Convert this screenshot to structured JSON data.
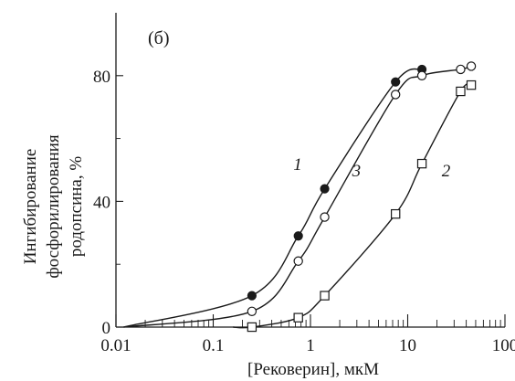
{
  "chart_data": {
    "type": "scatter",
    "panel_label": "(б)",
    "xlabel": "[Рековерин], мкМ",
    "ylabel_lines": [
      "Ингибирование",
      "фосфорилирования",
      "родопсина, %"
    ],
    "x_scale": "log",
    "xlim": [
      0.01,
      100
    ],
    "ylim": [
      0,
      100
    ],
    "x_ticks": [
      0.01,
      0.1,
      1,
      10,
      100
    ],
    "x_tick_labels": [
      "0.01",
      "0.1",
      "1",
      "10",
      "100"
    ],
    "y_ticks": [
      0,
      40,
      80
    ],
    "y_tick_labels": [
      "0",
      "40",
      "80"
    ],
    "grid": false,
    "series": [
      {
        "name": "1",
        "marker": "filled-circle",
        "x": [
          0.25,
          0.75,
          1.4,
          7.5,
          14
        ],
        "y": [
          10,
          29,
          44,
          78,
          82
        ]
      },
      {
        "name": "2",
        "marker": "open-square",
        "x": [
          0.25,
          0.75,
          1.4,
          7.5,
          14,
          35,
          45
        ],
        "y": [
          0,
          3,
          10,
          36,
          52,
          75,
          77
        ]
      },
      {
        "name": "3",
        "marker": "open-circle",
        "x": [
          0.25,
          0.75,
          1.4,
          7.5,
          14,
          35,
          45
        ],
        "y": [
          5,
          21,
          35,
          74,
          80,
          82,
          83
        ]
      }
    ]
  }
}
